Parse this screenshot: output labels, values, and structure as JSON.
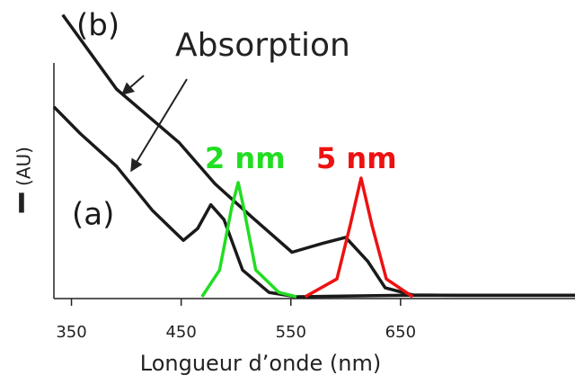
{
  "chart_data": {
    "type": "line",
    "x_label": "Longueur d’onde (nm)",
    "y_label": {
      "symbol": "I",
      "unit": "(AU)"
    },
    "annotation": "Absorption",
    "xlim": [
      334,
      809
    ],
    "xticks": [
      350,
      450,
      550,
      650
    ],
    "ylim": [
      0,
      10
    ],
    "series": [
      {
        "name": "(b)",
        "color": "#1a1a1a",
        "x": [
          342,
          391,
          448,
          481,
          514,
          551,
          579,
          600,
          620,
          636,
          661,
          700,
          750,
          809
        ],
        "values": [
          9.5,
          7.0,
          5.2,
          3.8,
          2.7,
          1.5,
          1.8,
          2.0,
          1.2,
          0.3,
          0.06,
          0.05,
          0.05,
          0.05
        ]
      },
      {
        "name": "(a)",
        "color": "#1a1a1a",
        "x": [
          334,
          358,
          391,
          424,
          452,
          465,
          477,
          489,
          506,
          530,
          555,
          650,
          809
        ],
        "values": [
          6.4,
          5.5,
          4.4,
          2.9,
          1.9,
          2.3,
          3.1,
          2.6,
          0.9,
          0.15,
          0,
          0.05,
          0.05
        ]
      },
      {
        "name": "2 nm",
        "color": "#22dd22",
        "x": [
          469,
          485,
          496,
          502,
          507,
          518,
          539,
          555
        ],
        "values": [
          0,
          0.9,
          3.0,
          3.85,
          3.0,
          0.9,
          0.15,
          0
        ]
      },
      {
        "name": "5 nm",
        "color": "#ee1111",
        "x": [
          563,
          592,
          604,
          614,
          624,
          637,
          661
        ],
        "values": [
          0,
          0.6,
          2.4,
          4.0,
          2.4,
          0.6,
          0
        ]
      }
    ]
  }
}
